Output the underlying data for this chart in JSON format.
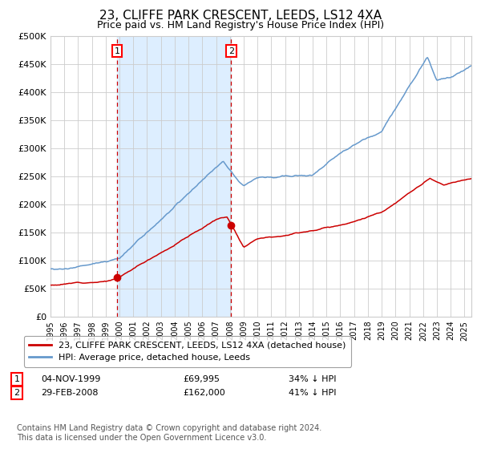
{
  "title": "23, CLIFFE PARK CRESCENT, LEEDS, LS12 4XA",
  "subtitle": "Price paid vs. HM Land Registry's House Price Index (HPI)",
  "footnote": "Contains HM Land Registry data © Crown copyright and database right 2024.\nThis data is licensed under the Open Government Licence v3.0.",
  "legend_line1": "23, CLIFFE PARK CRESCENT, LEEDS, LS12 4XA (detached house)",
  "legend_line2": "HPI: Average price, detached house, Leeds",
  "sale1_label": "1",
  "sale2_label": "2",
  "sale1_date": "04-NOV-1999",
  "sale1_price": "£69,995",
  "sale1_note": "34% ↓ HPI",
  "sale2_date": "29-FEB-2008",
  "sale2_price": "£162,000",
  "sale2_note": "41% ↓ HPI",
  "red_color": "#cc0000",
  "blue_color": "#6699cc",
  "bg_shaded": "#ddeeff",
  "grid_color": "#cccccc",
  "sale1_x": 1999.833,
  "sale1_y": 69995,
  "sale2_x": 2008.083,
  "sale2_y": 162000,
  "ylim": [
    0,
    500000
  ],
  "xlim": [
    1995,
    2025.5
  ],
  "yticks": [
    0,
    50000,
    100000,
    150000,
    200000,
    250000,
    300000,
    350000,
    400000,
    450000,
    500000
  ],
  "ytick_labels": [
    "£0",
    "£50K",
    "£100K",
    "£150K",
    "£200K",
    "£250K",
    "£300K",
    "£350K",
    "£400K",
    "£450K",
    "£500K"
  ],
  "title_fontsize": 11,
  "subtitle_fontsize": 9,
  "tick_fontsize": 8,
  "legend_fontsize": 8,
  "sale_table_fontsize": 8,
  "footnote_fontsize": 7
}
